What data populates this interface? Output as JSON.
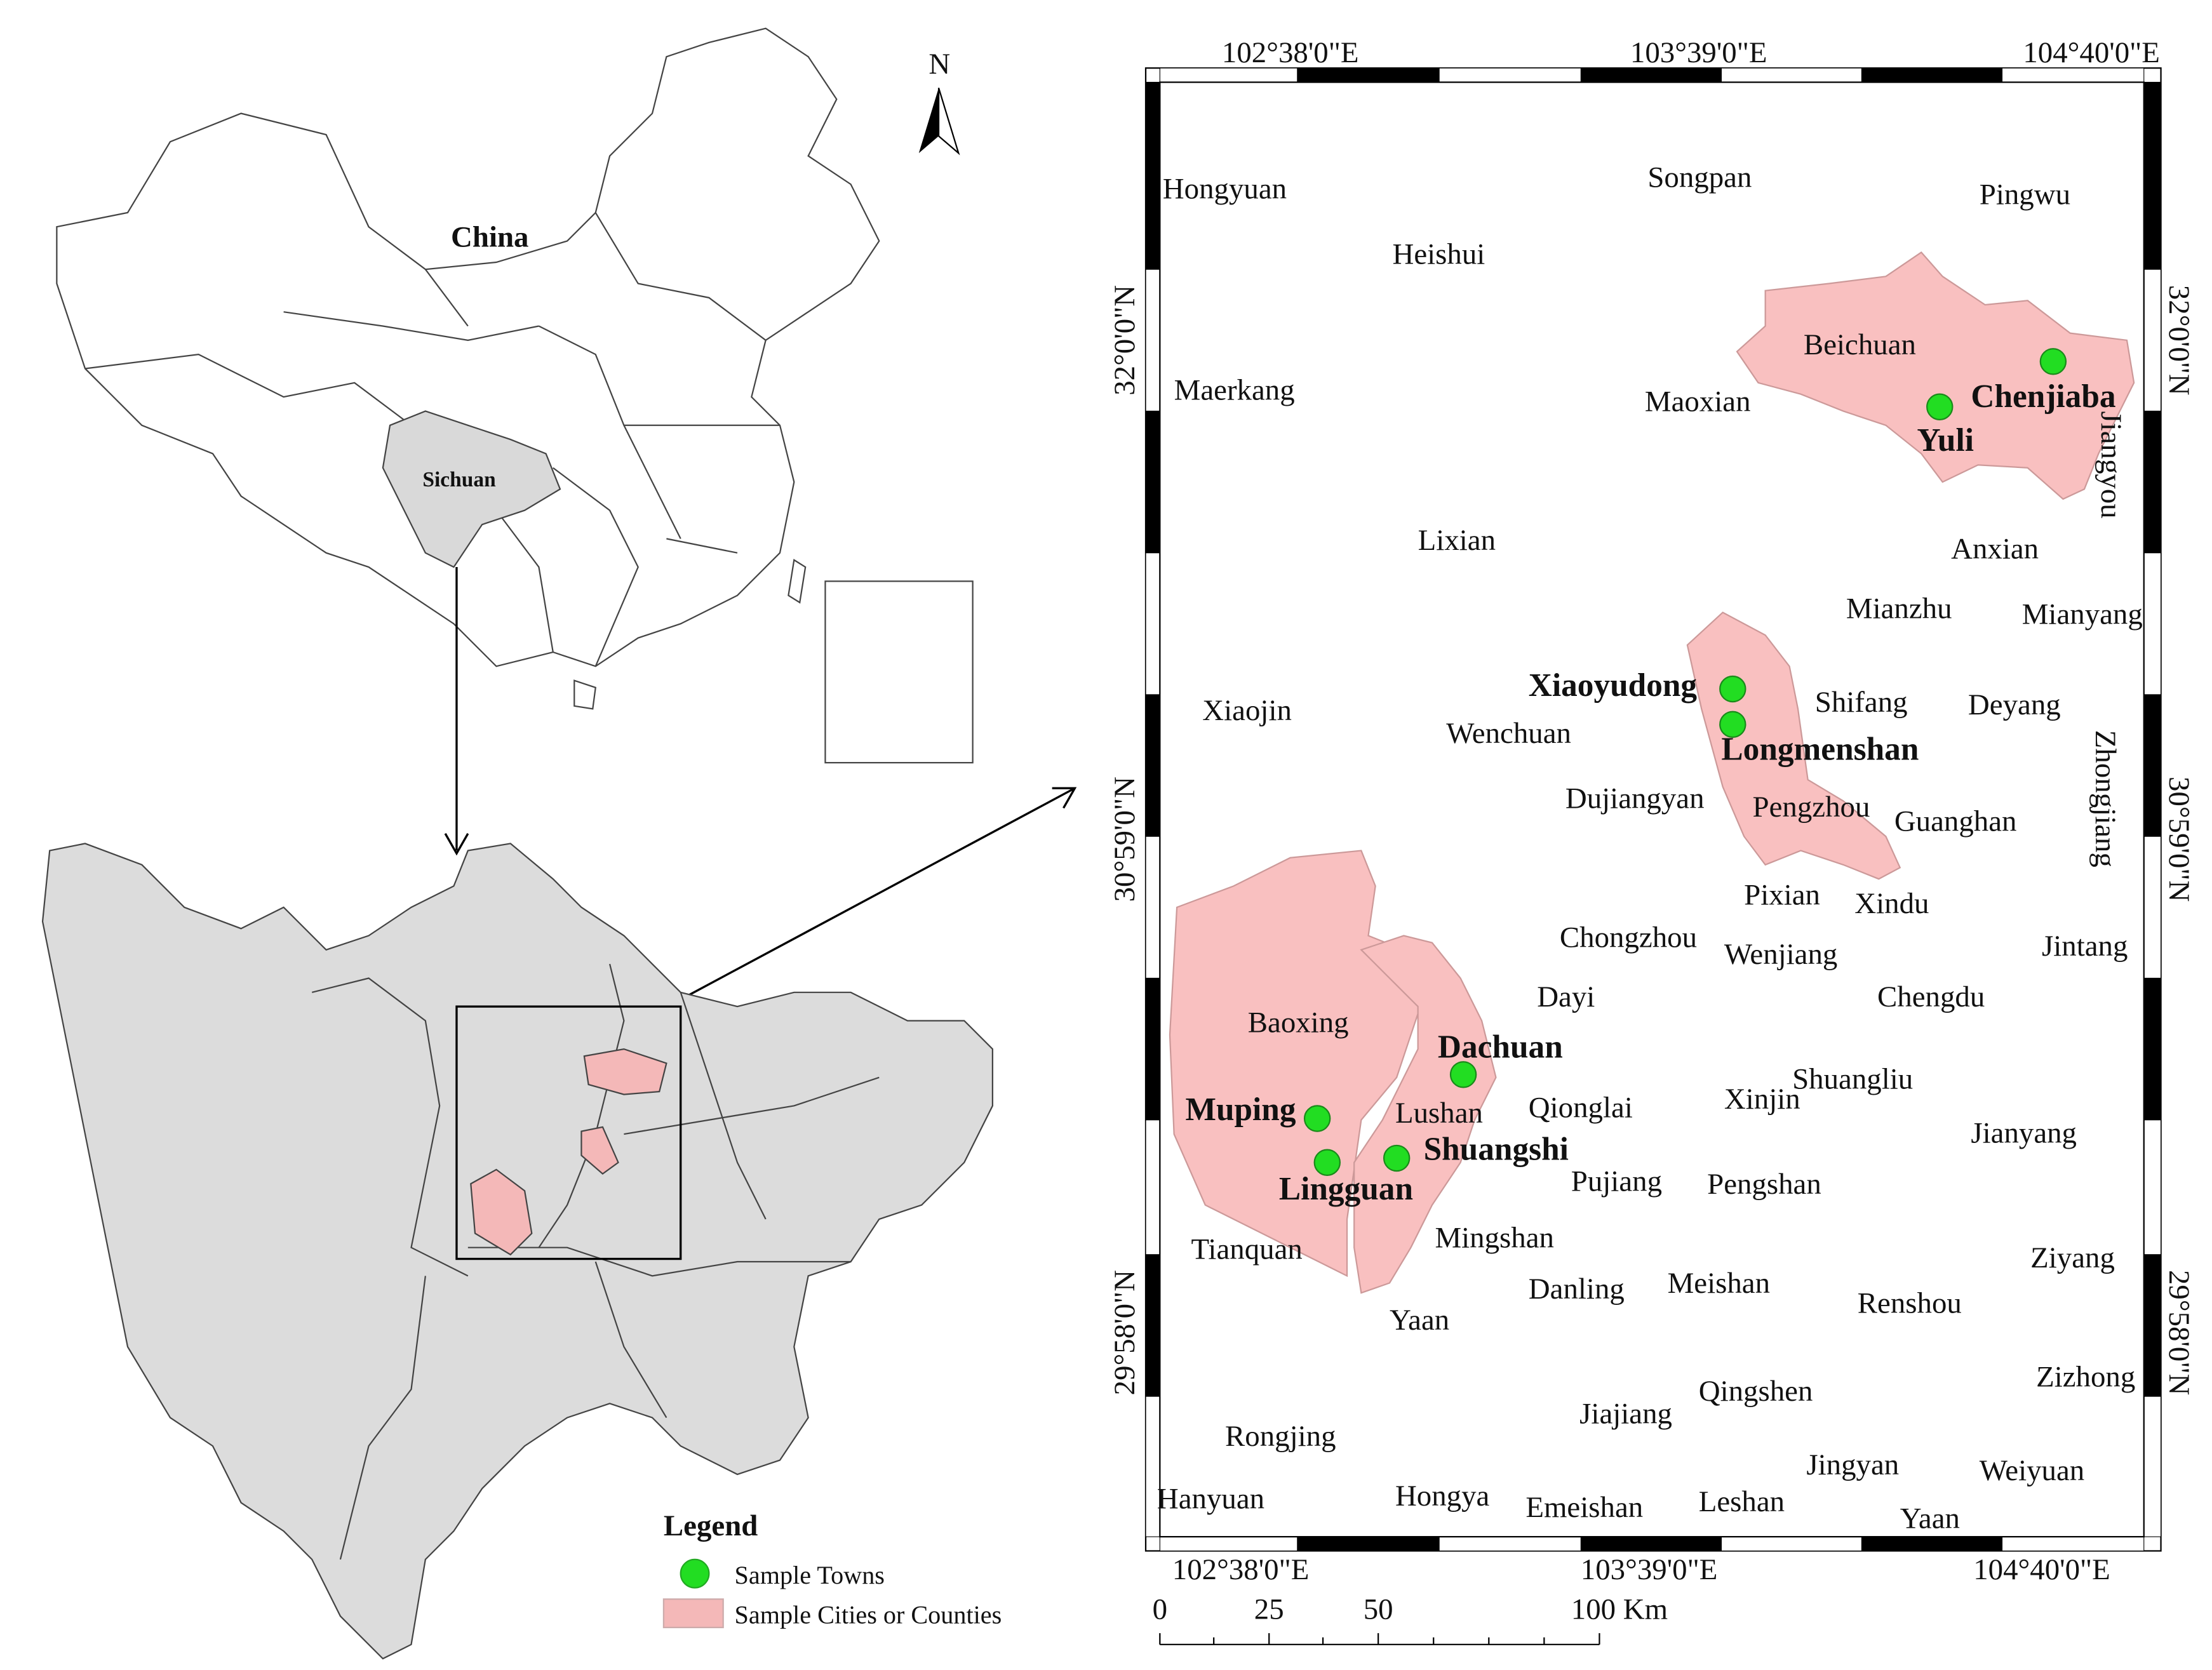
{
  "overview": {
    "china_label": "China",
    "sichuan_label": "Sichuan",
    "north": "N"
  },
  "legend": {
    "title": "Legend",
    "items": [
      "Sample Towns",
      "Sample Cities or Counties"
    ]
  },
  "coordinates": {
    "top": [
      "102°38'0\"E",
      "103°39'0\"E",
      "104°40'0\"E"
    ],
    "bottom": [
      "102°38'0\"E",
      "103°39'0\"E",
      "104°40'0\"E"
    ],
    "left": [
      "32°0'0\"N",
      "30°59'0\"N",
      "29°58'0\"N"
    ],
    "right": [
      "32°0'0\"N",
      "30°59'0\"N",
      "29°58'0\"N"
    ]
  },
  "scale_bar": {
    "labels": [
      "0",
      "25",
      "50",
      "100 Km"
    ]
  },
  "sample_towns": [
    "Chenjiaba",
    "Yuli",
    "Xiaoyudong",
    "Longmenshan",
    "Dachuan",
    "Muping",
    "Shuangshi",
    "Lingguan"
  ],
  "places": [
    "Hongyuan",
    "Songpan",
    "Pingwu",
    "Heishui",
    "Beichuan",
    "Maerkang",
    "Maoxian",
    "Jiangyou",
    "Lixian",
    "Anxian",
    "Mianzhu",
    "Mianyang",
    "Xiaojin",
    "Wenchuan",
    "Shifang",
    "Deyang",
    "Zhongjiang",
    "Dujiangyan",
    "Pengzhou",
    "Guanghan",
    "Pixian",
    "Xindu",
    "Chongzhou",
    "Wenjiang",
    "Jintang",
    "Dayi",
    "Chengdu",
    "Baoxing",
    "Lushan",
    "Qionglai",
    "Xinjin",
    "Shuangliu",
    "Jianyang",
    "Pujiang",
    "Pengshan",
    "Tianquan",
    "Mingshan",
    "Danling",
    "Meishan",
    "Ziyang",
    "Renshou",
    "Yaan",
    "Zizhong",
    "Qingshen",
    "Jiajiang",
    "Rongjing",
    "Jingyan",
    "Weiyuan",
    "Hanyuan",
    "Hongya",
    "Emeishan",
    "Leshan",
    "Yaan"
  ]
}
